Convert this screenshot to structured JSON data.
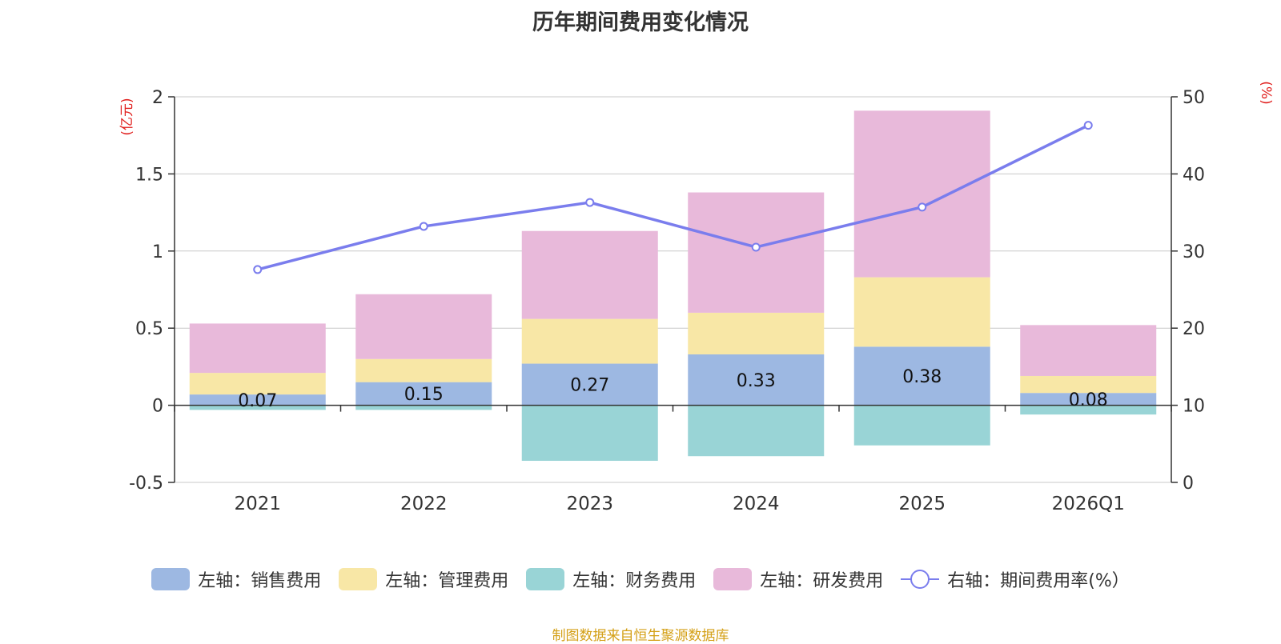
{
  "chart_data": {
    "type": "bar",
    "title": "历年期间费用变化情况",
    "left_axis_label": "(亿元)",
    "right_axis_label": "(%)",
    "left_ylim": [
      -0.5,
      2
    ],
    "left_ticks": [
      -0.5,
      0,
      0.5,
      1,
      1.5,
      2
    ],
    "left_tick_labels": [
      "-0.5",
      "0",
      "0.5",
      "1",
      "1.5",
      "2"
    ],
    "right_ylim": [
      0,
      50
    ],
    "right_ticks": [
      0,
      10,
      20,
      30,
      40,
      50
    ],
    "right_tick_labels": [
      "0",
      "10",
      "20",
      "30",
      "40",
      "50"
    ],
    "categories": [
      "2021",
      "2022",
      "2023",
      "2024",
      "2025",
      "2026Q1"
    ],
    "series": [
      {
        "name": "左轴：销售费用",
        "type": "bar",
        "axis": "left",
        "color": "#9db8e2",
        "values": [
          0.07,
          0.15,
          0.27,
          0.33,
          0.38,
          0.08
        ],
        "labels": [
          "0.07",
          "0.15",
          "0.27",
          "0.33",
          "0.38",
          "0.08"
        ]
      },
      {
        "name": "左轴：管理费用",
        "type": "bar",
        "axis": "left",
        "color": "#f8e7a6",
        "values": [
          0.14,
          0.15,
          0.29,
          0.27,
          0.45,
          0.11
        ]
      },
      {
        "name": "左轴：财务费用",
        "type": "bar",
        "axis": "left",
        "color": "#99d4d6",
        "values": [
          -0.03,
          -0.03,
          -0.36,
          -0.33,
          -0.26,
          -0.06
        ]
      },
      {
        "name": "左轴：研发费用",
        "type": "bar",
        "axis": "left",
        "color": "#e8b9da",
        "values": [
          0.32,
          0.42,
          0.57,
          0.78,
          1.08,
          0.33
        ]
      },
      {
        "name": "右轴：期间费用率(%）",
        "type": "line",
        "axis": "right",
        "color": "#7a7ded",
        "values": [
          27.6,
          33.2,
          36.3,
          30.5,
          35.7,
          46.3
        ]
      }
    ],
    "legend_position": "bottom",
    "grid": true
  },
  "source_text": "制图数据来自恒生聚源数据库"
}
